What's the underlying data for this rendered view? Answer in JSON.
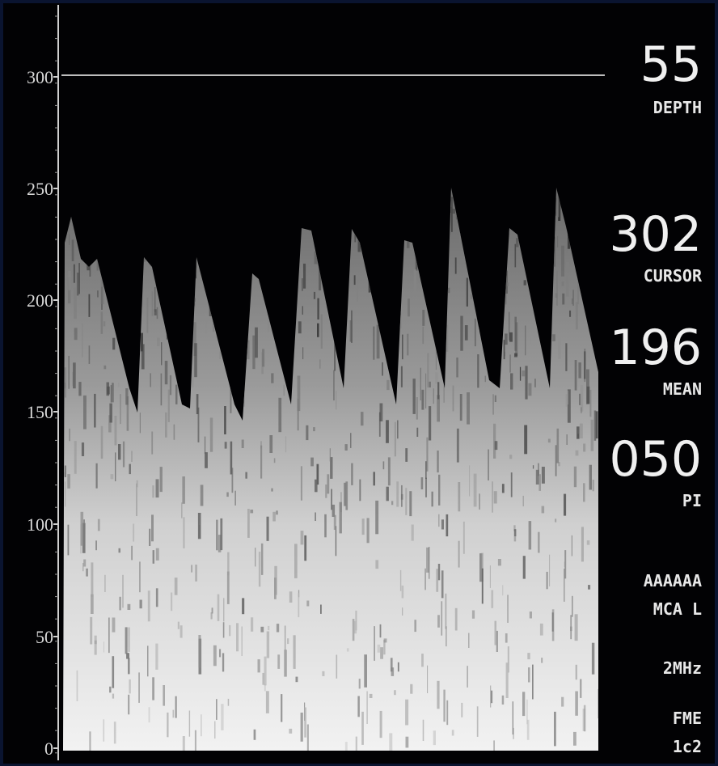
{
  "axis": {
    "ticks": [
      "300",
      "250",
      "200",
      "150",
      "100",
      "50",
      "0"
    ]
  },
  "readouts": [
    {
      "value": "55",
      "label": "DEPTH"
    },
    {
      "value": "302",
      "label": "CURSOR"
    },
    {
      "value": "196",
      "label": "MEAN"
    },
    {
      "value": "050",
      "label": "PI"
    }
  ],
  "info": [
    "AAAAAA",
    "MCA L",
    "2MHz",
    "FME",
    "1c2"
  ]
}
